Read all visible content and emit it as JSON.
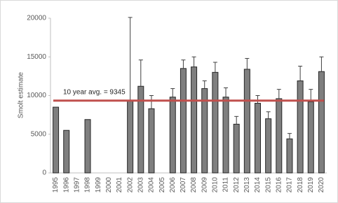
{
  "chart_data": {
    "type": "bar",
    "y_label": "Smolt estimate",
    "categories": [
      "1995",
      "1996",
      "1997",
      "1998",
      "1999",
      "2000",
      "2001",
      "2002",
      "2003",
      "2004",
      "2005",
      "2006",
      "2007",
      "2008",
      "2009",
      "2010",
      "2011",
      "2012",
      "2013",
      "2014",
      "2015",
      "2016",
      "2017",
      "2018",
      "2019",
      "2020"
    ],
    "values": [
      8500,
      5500,
      null,
      6900,
      null,
      null,
      null,
      9300,
      11200,
      8300,
      null,
      9800,
      13500,
      13700,
      10900,
      13000,
      9800,
      6300,
      13400,
      9000,
      7000,
      9600,
      4400,
      11900,
      9200,
      13100
    ],
    "errors": [
      null,
      null,
      null,
      null,
      null,
      null,
      null,
      10800,
      3400,
      1700,
      null,
      1100,
      1100,
      1300,
      1000,
      1300,
      1200,
      1000,
      1400,
      1000,
      900,
      1200,
      700,
      1900,
      1600,
      1900
    ],
    "color": "#7f7f7f",
    "ylim": [
      0,
      20000
    ],
    "yticks": [
      0,
      5000,
      10000,
      15000,
      20000
    ],
    "reference": {
      "value": 9345,
      "label": "10 year avg. = 9345",
      "color": "#c0504d"
    }
  }
}
